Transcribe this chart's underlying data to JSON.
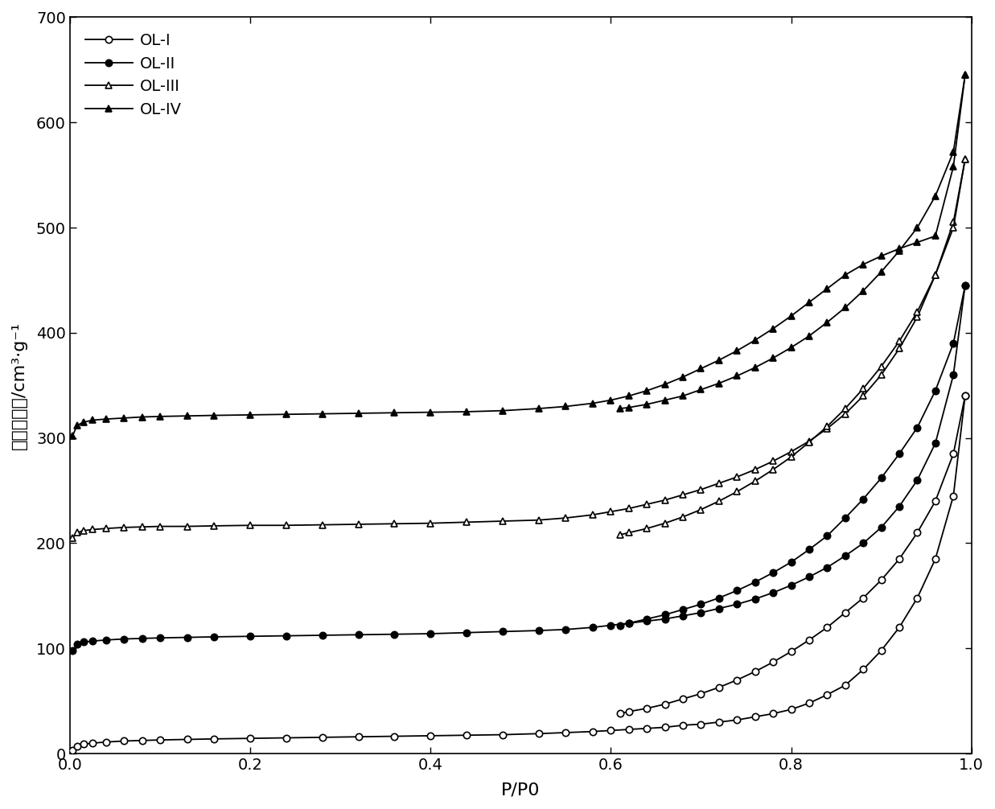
{
  "xlabel": "P/P0",
  "ylabel": "吸脱附体积/cm³·g⁻¹",
  "xlim": [
    0.0,
    1.0
  ],
  "ylim": [
    0,
    700
  ],
  "yticks": [
    0,
    100,
    200,
    300,
    400,
    500,
    600,
    700
  ],
  "xticks": [
    0.0,
    0.2,
    0.4,
    0.6,
    0.8,
    1.0
  ],
  "series": {
    "OL-I": {
      "ads_x": [
        0.003,
        0.008,
        0.015,
        0.025,
        0.04,
        0.06,
        0.08,
        0.1,
        0.13,
        0.16,
        0.2,
        0.24,
        0.28,
        0.32,
        0.36,
        0.4,
        0.44,
        0.48,
        0.52,
        0.55,
        0.58,
        0.6,
        0.62,
        0.64,
        0.66,
        0.68,
        0.7,
        0.72,
        0.74,
        0.76,
        0.78,
        0.8,
        0.82,
        0.84,
        0.86,
        0.88,
        0.9,
        0.92,
        0.94,
        0.96,
        0.98,
        0.993
      ],
      "ads_y": [
        3,
        7,
        9,
        10,
        11,
        12,
        12.5,
        13,
        13.5,
        14,
        14.5,
        15,
        15.5,
        16,
        16.5,
        17,
        17.5,
        18,
        19,
        20,
        21,
        22,
        23,
        24,
        25,
        27,
        28,
        30,
        32,
        35,
        38,
        42,
        48,
        56,
        65,
        80,
        98,
        120,
        148,
        185,
        245,
        340
      ],
      "des_x": [
        0.993,
        0.98,
        0.96,
        0.94,
        0.92,
        0.9,
        0.88,
        0.86,
        0.84,
        0.82,
        0.8,
        0.78,
        0.76,
        0.74,
        0.72,
        0.7,
        0.68,
        0.66,
        0.64,
        0.62,
        0.61
      ],
      "des_y": [
        340,
        285,
        240,
        210,
        185,
        165,
        148,
        134,
        120,
        108,
        97,
        87,
        78,
        70,
        63,
        57,
        52,
        47,
        43,
        40,
        38
      ],
      "marker": "o",
      "filled": false
    },
    "OL-II": {
      "ads_x": [
        0.003,
        0.008,
        0.015,
        0.025,
        0.04,
        0.06,
        0.08,
        0.1,
        0.13,
        0.16,
        0.2,
        0.24,
        0.28,
        0.32,
        0.36,
        0.4,
        0.44,
        0.48,
        0.52,
        0.55,
        0.58,
        0.6,
        0.62,
        0.64,
        0.66,
        0.68,
        0.7,
        0.72,
        0.74,
        0.76,
        0.78,
        0.8,
        0.82,
        0.84,
        0.86,
        0.88,
        0.9,
        0.92,
        0.94,
        0.96,
        0.98,
        0.993
      ],
      "ads_y": [
        98,
        104,
        106,
        107,
        108,
        109,
        109.5,
        110,
        110.5,
        111,
        111.5,
        112,
        112.5,
        113,
        113.5,
        114,
        115,
        116,
        117,
        118,
        120,
        122,
        124,
        126,
        128,
        131,
        134,
        138,
        142,
        147,
        153,
        160,
        168,
        177,
        188,
        200,
        215,
        235,
        260,
        295,
        360,
        445
      ],
      "des_x": [
        0.993,
        0.98,
        0.96,
        0.94,
        0.92,
        0.9,
        0.88,
        0.86,
        0.84,
        0.82,
        0.8,
        0.78,
        0.76,
        0.74,
        0.72,
        0.7,
        0.68,
        0.66,
        0.64,
        0.62,
        0.61
      ],
      "des_y": [
        445,
        390,
        345,
        310,
        285,
        262,
        242,
        224,
        207,
        194,
        182,
        172,
        163,
        155,
        148,
        142,
        137,
        132,
        128,
        124,
        122
      ],
      "marker": "o",
      "filled": true
    },
    "OL-III": {
      "ads_x": [
        0.003,
        0.008,
        0.015,
        0.025,
        0.04,
        0.06,
        0.08,
        0.1,
        0.13,
        0.16,
        0.2,
        0.24,
        0.28,
        0.32,
        0.36,
        0.4,
        0.44,
        0.48,
        0.52,
        0.55,
        0.58,
        0.6,
        0.62,
        0.64,
        0.66,
        0.68,
        0.7,
        0.72,
        0.74,
        0.76,
        0.78,
        0.8,
        0.82,
        0.84,
        0.86,
        0.88,
        0.9,
        0.92,
        0.94,
        0.96,
        0.98,
        0.993
      ],
      "ads_y": [
        205,
        210,
        212,
        213,
        214,
        215,
        215.5,
        216,
        216,
        216.5,
        217,
        217,
        217.5,
        218,
        218.5,
        219,
        220,
        221,
        222,
        224,
        227,
        230,
        233,
        237,
        241,
        246,
        251,
        257,
        263,
        270,
        278,
        287,
        297,
        309,
        323,
        340,
        360,
        385,
        415,
        455,
        505,
        565
      ],
      "des_x": [
        0.993,
        0.98,
        0.96,
        0.94,
        0.92,
        0.9,
        0.88,
        0.86,
        0.84,
        0.82,
        0.8,
        0.78,
        0.76,
        0.74,
        0.72,
        0.7,
        0.68,
        0.66,
        0.64,
        0.62,
        0.61
      ],
      "des_y": [
        565,
        500,
        455,
        420,
        392,
        368,
        347,
        328,
        311,
        296,
        282,
        270,
        259,
        249,
        240,
        232,
        225,
        219,
        214,
        210,
        208
      ],
      "marker": "^",
      "filled": false
    },
    "OL-IV": {
      "ads_x": [
        0.003,
        0.008,
        0.015,
        0.025,
        0.04,
        0.06,
        0.08,
        0.1,
        0.13,
        0.16,
        0.2,
        0.24,
        0.28,
        0.32,
        0.36,
        0.4,
        0.44,
        0.48,
        0.52,
        0.55,
        0.58,
        0.6,
        0.62,
        0.64,
        0.66,
        0.68,
        0.7,
        0.72,
        0.74,
        0.76,
        0.78,
        0.8,
        0.82,
        0.84,
        0.86,
        0.88,
        0.9,
        0.92,
        0.94,
        0.96,
        0.98,
        0.993
      ],
      "ads_y": [
        302,
        312,
        315,
        317,
        318,
        319,
        320,
        320.5,
        321,
        321.5,
        322,
        322.5,
        323,
        323.5,
        324,
        324.5,
        325,
        326,
        328,
        330,
        333,
        336,
        340,
        345,
        351,
        358,
        366,
        374,
        383,
        393,
        404,
        416,
        429,
        442,
        455,
        465,
        473,
        480,
        486,
        492,
        558,
        645
      ],
      "des_x": [
        0.993,
        0.98,
        0.96,
        0.94,
        0.92,
        0.9,
        0.88,
        0.86,
        0.84,
        0.82,
        0.8,
        0.78,
        0.76,
        0.74,
        0.72,
        0.7,
        0.68,
        0.66,
        0.64,
        0.62,
        0.61
      ],
      "des_y": [
        645,
        572,
        530,
        500,
        478,
        458,
        440,
        424,
        410,
        397,
        386,
        376,
        367,
        359,
        352,
        346,
        340,
        336,
        332,
        329,
        328
      ],
      "marker": "^",
      "filled": true
    }
  },
  "linewidth": 1.3,
  "markersize": 6,
  "markeredgewidth": 1.2,
  "background_color": "#ffffff",
  "spine_color": "#000000",
  "label_fontsize": 16,
  "tick_fontsize": 14,
  "legend_fontsize": 14,
  "legend_handlelength": 3.0,
  "legend_labelspacing": 0.5,
  "legend_handletextpad": 0.5
}
